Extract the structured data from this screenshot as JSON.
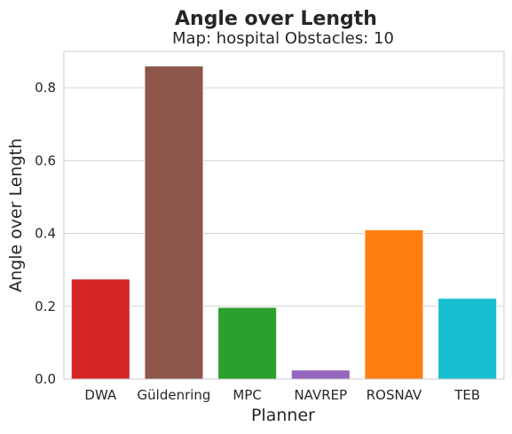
{
  "chart_data": {
    "type": "bar",
    "title": "Angle over Length",
    "subtitle": "Map: hospital Obstacles: 10",
    "xlabel": "Planner",
    "ylabel": "Angle over Length",
    "categories": [
      "DWA",
      "Güldenring",
      "MPC",
      "NAVREP",
      "ROSNAV",
      "TEB"
    ],
    "values": [
      0.275,
      0.86,
      0.197,
      0.025,
      0.41,
      0.222
    ],
    "colors": [
      "#d62728",
      "#8c564b",
      "#2ca02c",
      "#9467bd",
      "#ff7f0e",
      "#17becf"
    ],
    "ylim": [
      0,
      0.9
    ],
    "yticks": [
      0.0,
      0.2,
      0.4,
      0.6,
      0.8
    ],
    "ytick_labels": [
      "0.0",
      "0.2",
      "0.4",
      "0.6",
      "0.8"
    ],
    "grid": true,
    "legend": "none"
  }
}
